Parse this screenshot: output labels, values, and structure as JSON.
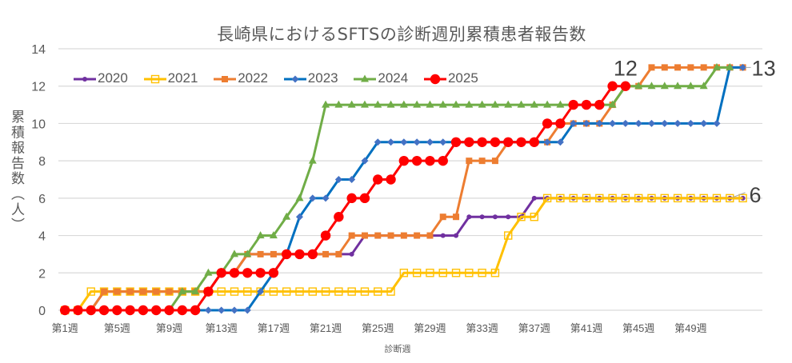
{
  "chart_data": {
    "type": "line",
    "title": "長崎県におけるSFTSの診断週別累積患者報告数",
    "xlabel": "診断週",
    "ylabel": "累積報告数（人）",
    "ylim": [
      0,
      14
    ],
    "yticks": [
      0,
      2,
      4,
      6,
      8,
      10,
      12,
      14
    ],
    "x_slots": 54,
    "x_tick_labels": [
      {
        "week": 1,
        "label": "第1週"
      },
      {
        "week": 5,
        "label": "第5週"
      },
      {
        "week": 9,
        "label": "第9週"
      },
      {
        "week": 13,
        "label": "第13週"
      },
      {
        "week": 17,
        "label": "第17週"
      },
      {
        "week": 21,
        "label": "第21週"
      },
      {
        "week": 25,
        "label": "第25週"
      },
      {
        "week": 29,
        "label": "第29週"
      },
      {
        "week": 33,
        "label": "第33週"
      },
      {
        "week": 37,
        "label": "第37週"
      },
      {
        "week": 41,
        "label": "第41週"
      },
      {
        "week": 45,
        "label": "第45週"
      },
      {
        "week": 49,
        "label": "第49週"
      }
    ],
    "grid": true,
    "legend_position": "top-left (inside plot)",
    "series": [
      {
        "name": "2020",
        "color": "#7030A0",
        "marker_color": "#7030A0",
        "marker": "circle-small",
        "values": [
          0,
          0,
          0,
          1,
          1,
          1,
          1,
          1,
          1,
          1,
          1,
          1,
          2,
          2,
          3,
          3,
          3,
          3,
          3,
          3,
          3,
          3,
          3,
          4,
          4,
          4,
          4,
          4,
          4,
          4,
          4,
          5,
          5,
          5,
          5,
          5,
          6,
          6,
          6,
          6,
          6,
          6,
          6,
          6,
          6,
          6,
          6,
          6,
          6,
          6,
          6,
          6,
          6
        ]
      },
      {
        "name": "2021",
        "color": "#FFC000",
        "marker_color": "#FFC000",
        "marker": "square-open",
        "values": [
          0,
          0,
          1,
          1,
          1,
          1,
          1,
          1,
          1,
          1,
          1,
          1,
          1,
          1,
          1,
          1,
          1,
          1,
          1,
          1,
          1,
          1,
          1,
          1,
          1,
          1,
          2,
          2,
          2,
          2,
          2,
          2,
          2,
          2,
          4,
          5,
          5,
          6,
          6,
          6,
          6,
          6,
          6,
          6,
          6,
          6,
          6,
          6,
          6,
          6,
          6,
          6,
          6
        ]
      },
      {
        "name": "2022",
        "color": "#ED7D31",
        "marker_color": "#ED7D31",
        "marker": "square",
        "values": [
          0,
          0,
          0,
          1,
          1,
          1,
          1,
          1,
          1,
          1,
          1,
          1,
          2,
          2,
          3,
          3,
          3,
          3,
          3,
          3,
          3,
          3,
          4,
          4,
          4,
          4,
          4,
          4,
          4,
          5,
          5,
          8,
          8,
          8,
          9,
          9,
          9,
          9,
          10,
          10,
          10,
          10,
          11,
          12,
          12,
          13,
          13,
          13,
          13,
          13,
          13,
          13,
          13
        ]
      },
      {
        "name": "2023",
        "color": "#0070C0",
        "marker_color": "#4472C4",
        "marker": "diamond",
        "values": [
          0,
          0,
          0,
          0,
          0,
          0,
          0,
          0,
          0,
          0,
          0,
          0,
          0,
          0,
          0,
          1,
          2,
          3,
          5,
          6,
          6,
          7,
          7,
          8,
          9,
          9,
          9,
          9,
          9,
          9,
          9,
          9,
          9,
          9,
          9,
          9,
          9,
          9,
          9,
          10,
          10,
          10,
          10,
          10,
          10,
          10,
          10,
          10,
          10,
          10,
          10,
          13,
          13
        ]
      },
      {
        "name": "2024",
        "color": "#70AD47",
        "marker_color": "#70AD47",
        "marker": "triangle",
        "values": [
          0,
          0,
          0,
          0,
          0,
          0,
          0,
          0,
          0,
          1,
          1,
          2,
          2,
          3,
          3,
          4,
          4,
          5,
          6,
          8,
          11,
          11,
          11,
          11,
          11,
          11,
          11,
          11,
          11,
          11,
          11,
          11,
          11,
          11,
          11,
          11,
          11,
          11,
          11,
          11,
          11,
          11,
          11,
          12,
          12,
          12,
          12,
          12,
          12,
          12,
          13,
          13
        ]
      },
      {
        "name": "2025",
        "color": "#FF0000",
        "marker_color": "#FF0000",
        "marker": "circle-large",
        "values": [
          0,
          0,
          0,
          0,
          0,
          0,
          0,
          0,
          0,
          0,
          0,
          1,
          2,
          2,
          2,
          2,
          2,
          3,
          3,
          3,
          4,
          5,
          6,
          6,
          7,
          7,
          8,
          8,
          8,
          8,
          9,
          9,
          9,
          9,
          9,
          9,
          9,
          10,
          10,
          11,
          11,
          11,
          12,
          12
        ]
      }
    ],
    "data_labels": [
      {
        "text": "12",
        "series": "2025",
        "week": 44,
        "value": 12,
        "position": "above"
      },
      {
        "text": "13",
        "series": "2023",
        "week": 53,
        "value": 13,
        "position": "right"
      },
      {
        "text": "6",
        "series": "2021",
        "week": 53,
        "value": 6,
        "position": "right-leader"
      }
    ]
  },
  "legend": {
    "items": [
      {
        "label": "2020"
      },
      {
        "label": "2021"
      },
      {
        "label": "2022"
      },
      {
        "label": "2023"
      },
      {
        "label": "2024"
      },
      {
        "label": "2025"
      }
    ]
  },
  "colors": {
    "text": "#595959",
    "data_label": "#404040",
    "gridline": "#D9D9D9",
    "leader_line": "#A6A6A6"
  }
}
